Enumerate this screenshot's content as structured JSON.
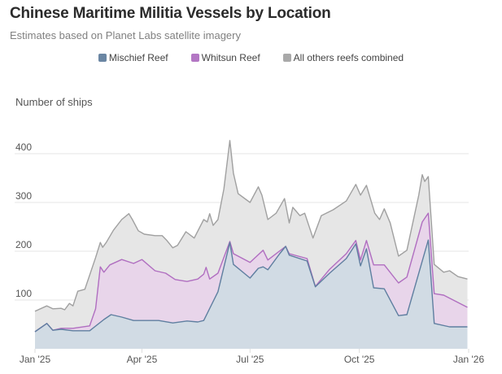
{
  "chart_data": {
    "type": "area",
    "stacked": true,
    "title": "Chinese Maritime Militia Vessels by Location",
    "subtitle": "Estimates based on Planet Labs satellite imagery",
    "xlabel": "",
    "ylabel": "Number of ships",
    "x_unit": "days since Jan 1, 2025",
    "xlim": [
      0,
      365
    ],
    "ylim": [
      0,
      440
    ],
    "grid": true,
    "legend_position": "top-center",
    "x_ticks": [
      {
        "label": "Jan '25",
        "day": 0
      },
      {
        "label": "Apr '25",
        "day": 90
      },
      {
        "label": "Jul '25",
        "day": 181
      },
      {
        "label": "Oct '25",
        "day": 273
      },
      {
        "label": "Jan '26",
        "day": 365
      }
    ],
    "y_ticks": [
      {
        "label": "100",
        "value": 100
      },
      {
        "label": "200",
        "value": 200
      },
      {
        "label": "300",
        "value": 300
      },
      {
        "label": "400",
        "value": 400
      }
    ],
    "series": [
      {
        "name": "Mischief Reef",
        "color": "#5f7fa0",
        "fill": "#d1dbe4",
        "note": "values are stacked top (cumulative)",
        "points": [
          [
            0,
            35
          ],
          [
            10,
            52
          ],
          [
            15,
            38
          ],
          [
            22,
            40
          ],
          [
            32,
            37
          ],
          [
            46,
            37
          ],
          [
            58,
            60
          ],
          [
            64,
            70
          ],
          [
            73,
            65
          ],
          [
            83,
            58
          ],
          [
            104,
            58
          ],
          [
            116,
            53
          ],
          [
            128,
            57
          ],
          [
            137,
            55
          ],
          [
            142,
            58
          ],
          [
            154,
            117
          ],
          [
            164,
            218
          ],
          [
            167,
            173
          ],
          [
            181,
            145
          ],
          [
            188,
            165
          ],
          [
            192,
            168
          ],
          [
            196,
            162
          ],
          [
            206,
            195
          ],
          [
            211,
            210
          ],
          [
            214,
            192
          ],
          [
            229,
            180
          ],
          [
            236,
            127
          ],
          [
            248,
            155
          ],
          [
            262,
            185
          ],
          [
            270,
            215
          ],
          [
            274,
            170
          ],
          [
            279,
            205
          ],
          [
            285,
            125
          ],
          [
            294,
            123
          ],
          [
            306,
            68
          ],
          [
            313,
            70
          ],
          [
            331,
            223
          ],
          [
            336,
            52
          ],
          [
            349,
            45
          ],
          [
            364,
            45
          ]
        ]
      },
      {
        "name": "Whitsun Reef",
        "color": "#b06ec0",
        "fill": "#e8d5ea",
        "note": "values are stacked top (cumulative)",
        "points": [
          [
            0,
            35
          ],
          [
            10,
            52
          ],
          [
            15,
            38
          ],
          [
            22,
            42
          ],
          [
            32,
            42
          ],
          [
            46,
            47
          ],
          [
            51,
            82
          ],
          [
            55,
            168
          ],
          [
            58,
            157
          ],
          [
            63,
            172
          ],
          [
            73,
            183
          ],
          [
            83,
            175
          ],
          [
            90,
            183
          ],
          [
            101,
            160
          ],
          [
            110,
            155
          ],
          [
            118,
            142
          ],
          [
            128,
            138
          ],
          [
            137,
            143
          ],
          [
            142,
            153
          ],
          [
            144,
            167
          ],
          [
            147,
            143
          ],
          [
            154,
            155
          ],
          [
            164,
            220
          ],
          [
            167,
            195
          ],
          [
            181,
            177
          ],
          [
            188,
            193
          ],
          [
            192,
            202
          ],
          [
            196,
            182
          ],
          [
            211,
            210
          ],
          [
            214,
            195
          ],
          [
            229,
            185
          ],
          [
            236,
            128
          ],
          [
            248,
            163
          ],
          [
            262,
            195
          ],
          [
            270,
            222
          ],
          [
            274,
            182
          ],
          [
            279,
            222
          ],
          [
            285,
            172
          ],
          [
            294,
            172
          ],
          [
            306,
            135
          ],
          [
            313,
            147
          ],
          [
            326,
            260
          ],
          [
            331,
            278
          ],
          [
            336,
            113
          ],
          [
            344,
            110
          ],
          [
            364,
            85
          ]
        ]
      },
      {
        "name": "All others reefs combined",
        "color": "#a0a0a0",
        "fill": "#e6e6e6",
        "note": "values are stacked top (cumulative total)",
        "points": [
          [
            0,
            77
          ],
          [
            10,
            88
          ],
          [
            15,
            82
          ],
          [
            22,
            83
          ],
          [
            25,
            80
          ],
          [
            29,
            93
          ],
          [
            32,
            88
          ],
          [
            36,
            118
          ],
          [
            42,
            122
          ],
          [
            51,
            187
          ],
          [
            55,
            218
          ],
          [
            57,
            208
          ],
          [
            60,
            218
          ],
          [
            66,
            243
          ],
          [
            73,
            265
          ],
          [
            79,
            277
          ],
          [
            82,
            265
          ],
          [
            87,
            242
          ],
          [
            92,
            235
          ],
          [
            101,
            232
          ],
          [
            107,
            232
          ],
          [
            111,
            222
          ],
          [
            116,
            207
          ],
          [
            120,
            212
          ],
          [
            127,
            240
          ],
          [
            134,
            227
          ],
          [
            142,
            265
          ],
          [
            145,
            260
          ],
          [
            147,
            277
          ],
          [
            150,
            253
          ],
          [
            154,
            265
          ],
          [
            159,
            328
          ],
          [
            164,
            427
          ],
          [
            167,
            360
          ],
          [
            171,
            318
          ],
          [
            181,
            300
          ],
          [
            188,
            332
          ],
          [
            191,
            315
          ],
          [
            196,
            265
          ],
          [
            203,
            278
          ],
          [
            210,
            308
          ],
          [
            214,
            258
          ],
          [
            217,
            290
          ],
          [
            223,
            273
          ],
          [
            227,
            278
          ],
          [
            234,
            227
          ],
          [
            241,
            273
          ],
          [
            251,
            285
          ],
          [
            262,
            303
          ],
          [
            270,
            337
          ],
          [
            274,
            315
          ],
          [
            279,
            335
          ],
          [
            286,
            278
          ],
          [
            290,
            265
          ],
          [
            294,
            287
          ],
          [
            299,
            258
          ],
          [
            306,
            190
          ],
          [
            313,
            202
          ],
          [
            323,
            315
          ],
          [
            326,
            357
          ],
          [
            328,
            343
          ],
          [
            331,
            353
          ],
          [
            336,
            173
          ],
          [
            344,
            157
          ],
          [
            349,
            160
          ],
          [
            356,
            148
          ],
          [
            364,
            143
          ]
        ]
      }
    ]
  },
  "header": {
    "title": "Chinese Maritime Militia Vessels by Location",
    "subtitle": "Estimates based on Planet Labs satellite imagery"
  },
  "legend": [
    {
      "label": "Mischief Reef",
      "color": "#6a86a3"
    },
    {
      "label": "Whitsun Reef",
      "color": "#b377c4"
    },
    {
      "label": "All others reefs combined",
      "color": "#a9a9a9"
    }
  ],
  "axis": {
    "ylabel": "Number of ships"
  }
}
